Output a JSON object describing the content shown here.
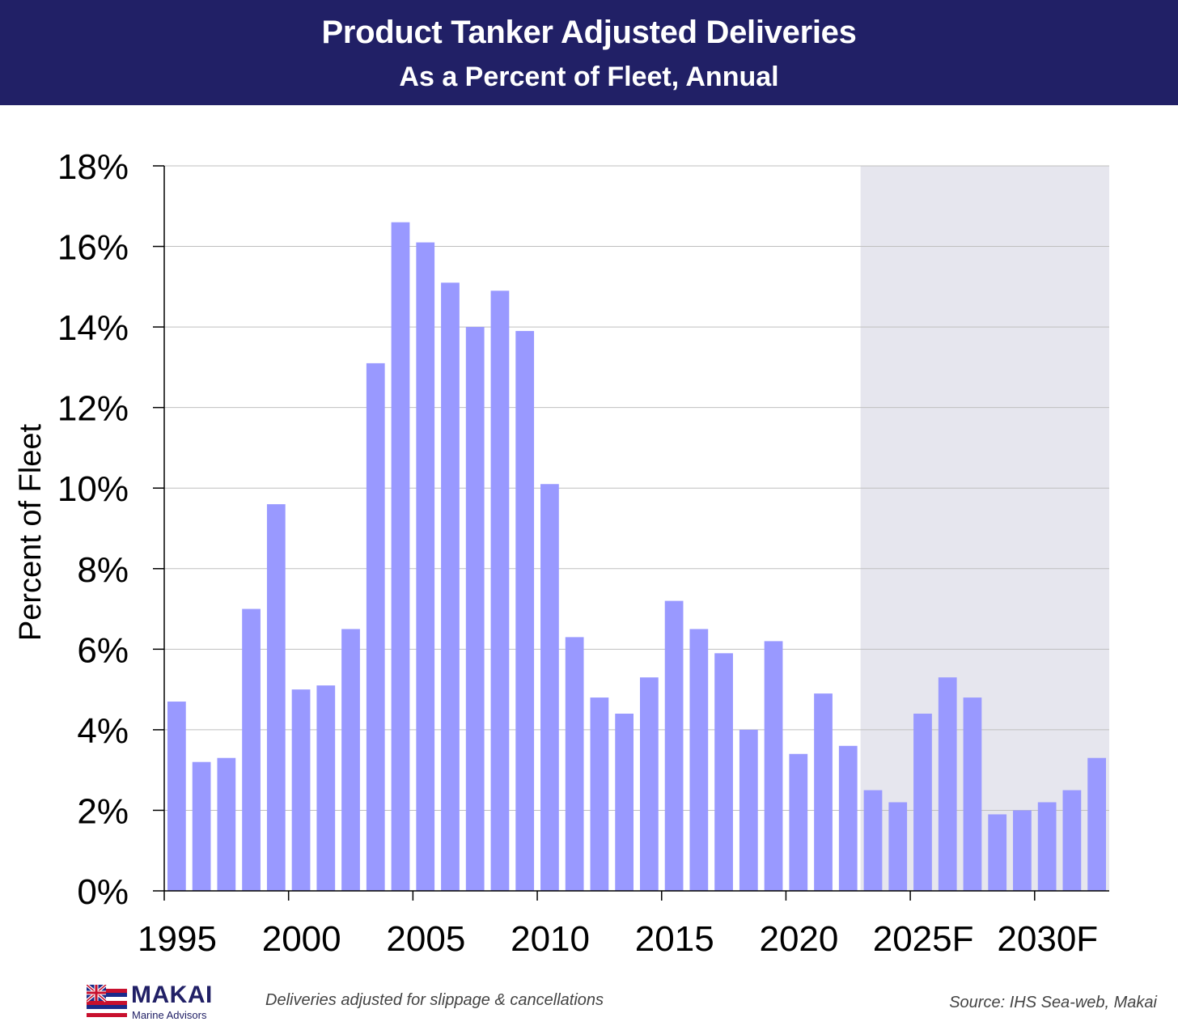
{
  "header": {
    "title": "Product Tanker Adjusted Deliveries",
    "subtitle": "As a Percent of Fleet, Annual"
  },
  "footer": {
    "logo_name": "MAKAI",
    "logo_sub": "Marine Advisors",
    "note": "Deliveries adjusted for slippage & cancellations",
    "source": "Source: IHS Sea-web, Makai"
  },
  "colors": {
    "header_bg": "#212066",
    "bar": "#9999ff",
    "forecast_shade": "#e6e6ee",
    "gridline": "#bfbfbf"
  },
  "chart_data": {
    "type": "bar",
    "ylabel": "Percent of Fleet",
    "xlabel": "",
    "ylim": [
      0,
      18
    ],
    "y_ticks": [
      "0%",
      "2%",
      "4%",
      "6%",
      "8%",
      "10%",
      "12%",
      "14%",
      "16%",
      "18%"
    ],
    "x_tick_labels": [
      "1995",
      "2000",
      "2005",
      "2010",
      "2015",
      "2020",
      "2025F",
      "2030F"
    ],
    "grid": "horizontal",
    "forecast_start": "2023",
    "categories": [
      "1995",
      "1996",
      "1997",
      "1998",
      "1999",
      "2000",
      "2001",
      "2002",
      "2003",
      "2004",
      "2005",
      "2006",
      "2007",
      "2008",
      "2009",
      "2010",
      "2011",
      "2012",
      "2013",
      "2014",
      "2015",
      "2016",
      "2017",
      "2018",
      "2019",
      "2020",
      "2021",
      "2022",
      "2023",
      "2024",
      "2025",
      "2026",
      "2027",
      "2028",
      "2029",
      "2030",
      "2031",
      "2032"
    ],
    "values": [
      4.7,
      3.2,
      3.3,
      7.0,
      9.6,
      5.0,
      5.1,
      6.5,
      13.1,
      16.6,
      16.1,
      15.1,
      14.0,
      14.9,
      13.9,
      10.1,
      6.3,
      4.8,
      4.4,
      5.3,
      7.2,
      6.5,
      5.9,
      4.0,
      6.2,
      3.4,
      4.9,
      3.6,
      2.5,
      2.2,
      4.4,
      5.3,
      4.8,
      1.9,
      2.0,
      2.2,
      2.5,
      3.3
    ]
  }
}
